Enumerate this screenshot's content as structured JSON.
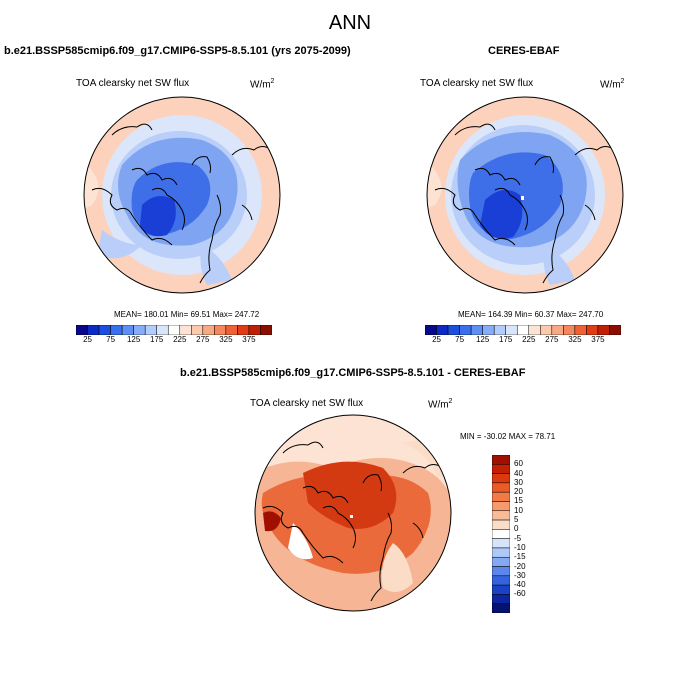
{
  "main_title": "ANN",
  "panels": [
    {
      "title": "b.e21.BSSP585cmip6.f09_g17.CMIP6-SSP5-8.5.101 (yrs 2075-2099)",
      "variable": "TOA clearsky net SW flux",
      "units": "W/m",
      "units_sup": "2",
      "stats": "MEAN= 180.01  Min=  69.51  Max= 247.72"
    },
    {
      "title": "CERES-EBAF",
      "variable": "TOA clearsky net SW flux",
      "units": "W/m",
      "units_sup": "2",
      "stats": "MEAN= 164.39  Min=  60.37  Max= 247.70"
    },
    {
      "title": "b.e21.BSSP585cmip6.f09_g17.CMIP6-SSP5-8.5.101 - CERES-EBAF",
      "variable": "TOA clearsky net SW flux",
      "units": "W/m",
      "units_sup": "2",
      "stats": "MIN = -30.02 MAX =  78.71"
    }
  ],
  "colorbar_abs": {
    "ticks": [
      "25",
      "75",
      "125",
      "175",
      "225",
      "275",
      "325",
      "375"
    ],
    "colors": [
      "#08088a",
      "#0c2bc4",
      "#1a4fe0",
      "#3a6ff0",
      "#5f8ff5",
      "#88adf8",
      "#b2ccfb",
      "#d8e6fc",
      "#ffffff",
      "#fde3d3",
      "#fbc9ad",
      "#f8a884",
      "#f5865e",
      "#ef6238",
      "#e23c16",
      "#c01f05",
      "#8a0f00"
    ]
  },
  "colorbar_diff": {
    "ticks": [
      "60",
      "40",
      "30",
      "20",
      "15",
      "10",
      "5",
      "0",
      "-5",
      "-10",
      "-15",
      "-20",
      "-30",
      "-40",
      "-60"
    ],
    "colors": [
      "#a01000",
      "#c41f02",
      "#dc3a0e",
      "#ec5a28",
      "#f27a46",
      "#f59a6c",
      "#f8bb98",
      "#fbdcc6",
      "#ffffff",
      "#d6e4fb",
      "#aec8f7",
      "#84a8f2",
      "#5b86ec",
      "#3563dd",
      "#1a42c6",
      "#0c25a2",
      "#06126e"
    ]
  },
  "colors": {
    "ice_dark": "#1a3fd6",
    "ice_mid": "#3f6fe8",
    "ice_light": "#7fa5f2",
    "ice_pale": "#b9cef8",
    "ocean_warm": "#fcd2bd",
    "diff_strong": "#d43a12",
    "diff_mid": "#ea6a3c",
    "diff_light": "#f6b594"
  }
}
